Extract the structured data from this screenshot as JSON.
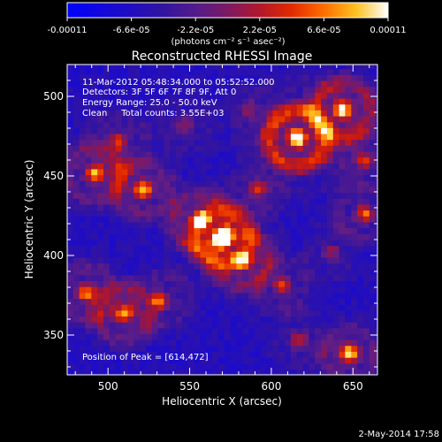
{
  "chart_data": {
    "type": "heatmap",
    "title": "Reconstructed RHESSI Image",
    "xlabel": "Heliocentric X (arcsec)",
    "ylabel": "Heliocentric Y (arcsec)",
    "xlim": [
      475,
      665
    ],
    "ylim": [
      325,
      520
    ],
    "x_ticks": [
      500,
      550,
      600,
      650
    ],
    "y_ticks": [
      350,
      400,
      450,
      500
    ],
    "annotations": [
      "11-Mar-2012 05:48:34.000 to 05:52:52.000",
      "Detectors: 3F 5F 6F 7F 8F 9F, Att 0",
      "Energy Range: 25.0 - 50.0 keV",
      "Clean     Total counts: 3.55E+03"
    ],
    "peak_label": "Position of Peak = [614,472]",
    "peak": [
      614,
      472
    ],
    "footer_date": "2-May-2014 17:58",
    "colorbar": {
      "ticks": [
        "-0.00011",
        "-6.6e-05",
        "-2.2e-05",
        "2.2e-05",
        "6.6e-05",
        "0.00011"
      ],
      "range": [
        -0.00011,
        0.00011
      ],
      "units_label": "(photons cm⁻² s⁻¹ asec⁻²)"
    },
    "sources": [
      {
        "x": 614,
        "y": 472,
        "amp": 1.0,
        "r": 16
      },
      {
        "x": 642,
        "y": 490,
        "amp": 0.85,
        "r": 14
      },
      {
        "x": 568,
        "y": 410,
        "amp": 0.95,
        "r": 14
      },
      {
        "x": 555,
        "y": 420,
        "amp": 0.7,
        "r": 12
      },
      {
        "x": 580,
        "y": 395,
        "amp": 0.7,
        "r": 12
      },
      {
        "x": 490,
        "y": 450,
        "amp": 0.75,
        "r": 12
      },
      {
        "x": 520,
        "y": 440,
        "amp": 0.8,
        "r": 11
      },
      {
        "x": 505,
        "y": 470,
        "amp": 0.55,
        "r": 10
      },
      {
        "x": 485,
        "y": 375,
        "amp": 0.7,
        "r": 11
      },
      {
        "x": 508,
        "y": 362,
        "amp": 0.7,
        "r": 12
      },
      {
        "x": 530,
        "y": 370,
        "amp": 0.6,
        "r": 10
      },
      {
        "x": 646,
        "y": 337,
        "amp": 0.9,
        "r": 10
      },
      {
        "x": 655,
        "y": 425,
        "amp": 0.65,
        "r": 10
      },
      {
        "x": 655,
        "y": 458,
        "amp": 0.5,
        "r": 9
      },
      {
        "x": 605,
        "y": 380,
        "amp": 0.55,
        "r": 10
      },
      {
        "x": 615,
        "y": 345,
        "amp": 0.5,
        "r": 9
      },
      {
        "x": 590,
        "y": 440,
        "amp": 0.45,
        "r": 9
      },
      {
        "x": 545,
        "y": 480,
        "amp": 0.35,
        "r": 10
      },
      {
        "x": 585,
        "y": 490,
        "amp": 0.3,
        "r": 9
      },
      {
        "x": 635,
        "y": 400,
        "amp": 0.4,
        "r": 9
      }
    ]
  }
}
